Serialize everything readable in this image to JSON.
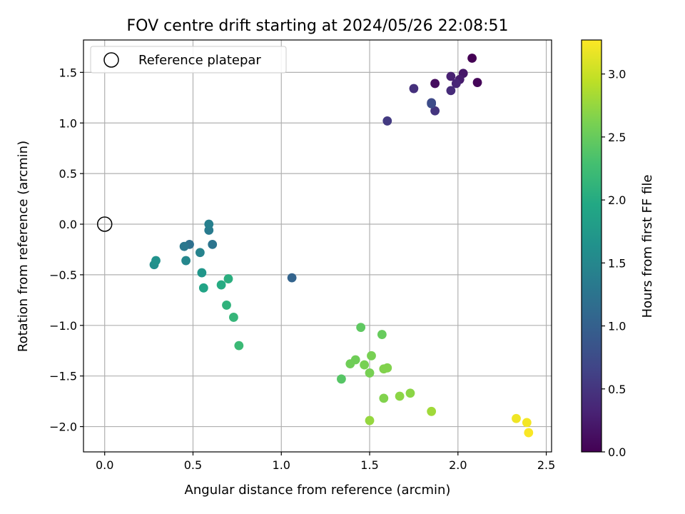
{
  "chart_data": {
    "type": "scatter",
    "title": "FOV centre drift starting at 2024/05/26 22:08:51",
    "xlabel": "Angular distance from reference (arcmin)",
    "ylabel": "Rotation from reference (arcmin)",
    "xlim": [
      -0.12,
      2.53
    ],
    "ylim": [
      -2.25,
      1.82
    ],
    "xticks": [
      0.0,
      0.5,
      1.0,
      1.5,
      2.0,
      2.5
    ],
    "xtick_labels": [
      "0.0",
      "0.5",
      "1.0",
      "1.5",
      "2.0",
      "2.5"
    ],
    "yticks": [
      -2.0,
      -1.5,
      -1.0,
      -0.5,
      0.0,
      0.5,
      1.0,
      1.5
    ],
    "ytick_labels": [
      "−2.0",
      "−1.5",
      "−1.0",
      "−0.5",
      "0.0",
      "0.5",
      "1.0",
      "1.5"
    ],
    "grid": true,
    "legend": {
      "position": "top-left",
      "entries": [
        {
          "label": "Reference platepar",
          "marker": "open-circle"
        }
      ]
    },
    "reference_point": {
      "x": 0.0,
      "y": 0.0
    },
    "colorbar": {
      "label": "Hours from first FF file",
      "colormap": "viridis",
      "range": [
        0.0,
        3.27
      ],
      "ticks": [
        0.0,
        0.5,
        1.0,
        1.5,
        2.0,
        2.5,
        3.0
      ],
      "tick_labels": [
        "0.0",
        "0.5",
        "1.0",
        "1.5",
        "2.0",
        "2.5",
        "3.0"
      ]
    },
    "points": [
      {
        "x": 2.08,
        "y": 1.64,
        "c": 0.0
      },
      {
        "x": 2.11,
        "y": 1.4,
        "c": 0.05
      },
      {
        "x": 1.87,
        "y": 1.39,
        "c": 0.1
      },
      {
        "x": 2.03,
        "y": 1.49,
        "c": 0.2
      },
      {
        "x": 2.01,
        "y": 1.43,
        "c": 0.25
      },
      {
        "x": 1.96,
        "y": 1.46,
        "c": 0.3
      },
      {
        "x": 1.99,
        "y": 1.39,
        "c": 0.35
      },
      {
        "x": 1.96,
        "y": 1.32,
        "c": 0.4
      },
      {
        "x": 1.75,
        "y": 1.34,
        "c": 0.45
      },
      {
        "x": 1.87,
        "y": 1.12,
        "c": 0.5
      },
      {
        "x": 1.6,
        "y": 1.02,
        "c": 0.55
      },
      {
        "x": 1.85,
        "y": 1.2,
        "c": 0.7
      },
      {
        "x": 1.85,
        "y": 1.19,
        "c": 0.75
      },
      {
        "x": 1.06,
        "y": -0.53,
        "c": 1.05
      },
      {
        "x": 0.48,
        "y": -0.2,
        "c": 1.2
      },
      {
        "x": 0.61,
        "y": -0.2,
        "c": 1.25
      },
      {
        "x": 0.45,
        "y": -0.22,
        "c": 1.3
      },
      {
        "x": 0.59,
        "y": -0.06,
        "c": 1.35
      },
      {
        "x": 0.59,
        "y": 0.0,
        "c": 1.4
      },
      {
        "x": 0.54,
        "y": -0.28,
        "c": 1.45
      },
      {
        "x": 0.46,
        "y": -0.36,
        "c": 1.5
      },
      {
        "x": 0.28,
        "y": -0.4,
        "c": 1.6
      },
      {
        "x": 0.29,
        "y": -0.36,
        "c": 1.65
      },
      {
        "x": 0.55,
        "y": -0.48,
        "c": 1.7
      },
      {
        "x": 0.56,
        "y": -0.63,
        "c": 1.9
      },
      {
        "x": 0.66,
        "y": -0.6,
        "c": 2.0
      },
      {
        "x": 0.7,
        "y": -0.54,
        "c": 2.05
      },
      {
        "x": 0.69,
        "y": -0.8,
        "c": 2.1
      },
      {
        "x": 0.73,
        "y": -0.92,
        "c": 2.15
      },
      {
        "x": 0.76,
        "y": -1.2,
        "c": 2.2
      },
      {
        "x": 1.34,
        "y": -1.53,
        "c": 2.4
      },
      {
        "x": 1.45,
        "y": -1.02,
        "c": 2.45
      },
      {
        "x": 1.57,
        "y": -1.09,
        "c": 2.5
      },
      {
        "x": 1.42,
        "y": -1.34,
        "c": 2.55
      },
      {
        "x": 1.39,
        "y": -1.38,
        "c": 2.55
      },
      {
        "x": 1.47,
        "y": -1.39,
        "c": 2.6
      },
      {
        "x": 1.51,
        "y": -1.3,
        "c": 2.6
      },
      {
        "x": 1.5,
        "y": -1.47,
        "c": 2.6
      },
      {
        "x": 1.58,
        "y": -1.43,
        "c": 2.65
      },
      {
        "x": 1.6,
        "y": -1.42,
        "c": 2.65
      },
      {
        "x": 1.58,
        "y": -1.72,
        "c": 2.65
      },
      {
        "x": 1.67,
        "y": -1.7,
        "c": 2.7
      },
      {
        "x": 1.73,
        "y": -1.67,
        "c": 2.7
      },
      {
        "x": 1.5,
        "y": -1.94,
        "c": 2.75
      },
      {
        "x": 1.85,
        "y": -1.85,
        "c": 2.8
      },
      {
        "x": 2.33,
        "y": -1.92,
        "c": 3.2
      },
      {
        "x": 2.39,
        "y": -1.96,
        "c": 3.22
      },
      {
        "x": 2.4,
        "y": -2.06,
        "c": 3.25
      }
    ]
  }
}
